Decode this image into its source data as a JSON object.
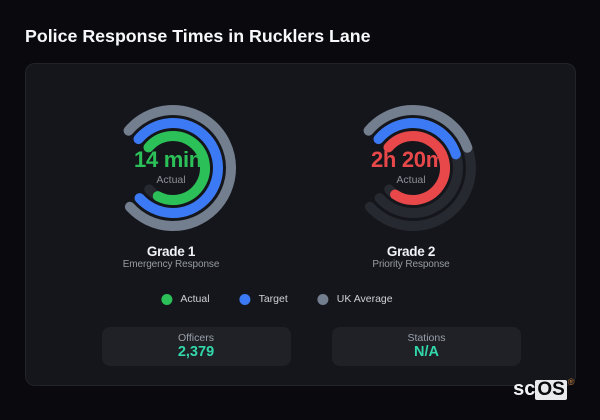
{
  "page": {
    "title": "Police Response Times in Rucklers Lane",
    "background": "#0a0a0e"
  },
  "chart_data": {
    "type": "radial-gauge",
    "title": "Police Response Times in Rucklers Lane",
    "start_angle_deg_from_12": 310,
    "max_sweep_deg": 278,
    "ring_radii": [
      58,
      45,
      32
    ],
    "ring_stroke": 10,
    "track_color": "#272930",
    "gauges": [
      {
        "name": "Grade 1",
        "description": "Emergency Response",
        "value": "14 min",
        "value_sublabel": "Actual",
        "value_color": "#2cc158",
        "rings": [
          {
            "series": "UK Average",
            "color": "#737e8e",
            "fraction": 1.0
          },
          {
            "series": "Target",
            "color": "#3c7af5",
            "fraction": 1.0
          },
          {
            "series": "Actual",
            "color": "#2cc158",
            "fraction": 0.93
          }
        ]
      },
      {
        "name": "Grade 2",
        "description": "Priority Response",
        "value": "2h 20m",
        "value_sublabel": "Actual",
        "value_color": "#e84849",
        "rings": [
          {
            "series": "UK Average",
            "color": "#737e8e",
            "fraction": 0.43
          },
          {
            "series": "Target",
            "color": "#3c7af5",
            "fraction": 0.44
          },
          {
            "series": "Actual",
            "color": "#e84849",
            "fraction": 0.95
          }
        ]
      }
    ],
    "legend": [
      {
        "label": "Actual",
        "color": "#2cc158"
      },
      {
        "label": "Target",
        "color": "#3c7af5"
      },
      {
        "label": "UK Average",
        "color": "#737e8e"
      }
    ]
  },
  "stats": [
    {
      "label": "Officers",
      "value": "2,379"
    },
    {
      "label": "Stations",
      "value": "N/A"
    }
  ],
  "logo": {
    "prefix": "sc",
    "box": "OS",
    "registered": "®"
  }
}
